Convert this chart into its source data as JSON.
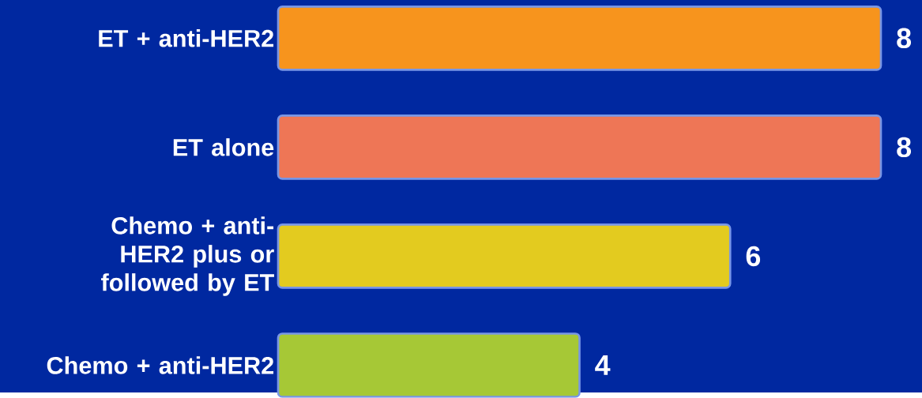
{
  "chart_data": {
    "type": "bar",
    "orientation": "horizontal",
    "categories": [
      "ET + anti-HER2",
      "ET alone",
      "Chemo + anti-HER2 plus or followed by ET",
      "Chemo + anti-HER2"
    ],
    "values": [
      8,
      8,
      6,
      4
    ],
    "colors": [
      "#f7941d",
      "#ee7656",
      "#e3cb1f",
      "#a6c836"
    ],
    "data_labels": true
  }
}
